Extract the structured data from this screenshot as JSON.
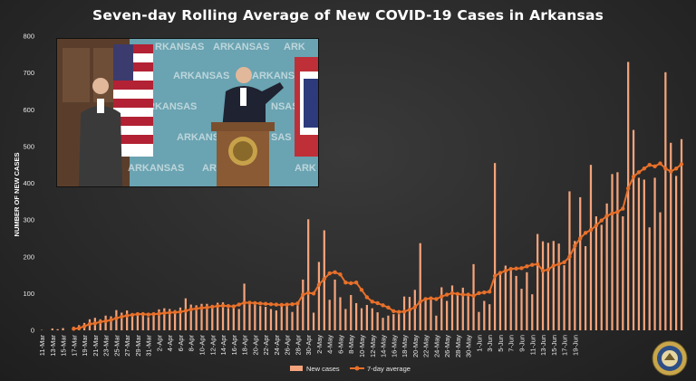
{
  "chart_data": {
    "type": "bar+line",
    "title": "Seven-day Rolling Average of New COVID-19 Cases in Arkansas",
    "ylabel": "NUMBER OF NEW CASES",
    "xlabel": "",
    "ylim": [
      0,
      800
    ],
    "yticks": [
      0,
      100,
      200,
      300,
      400,
      500,
      600,
      700,
      800
    ],
    "grid": false,
    "legend_position": "bottom-center",
    "colors": {
      "bars": "#f4a47c",
      "line": "#e8702a"
    },
    "start_date": "11-Mar",
    "x_tick_labels": [
      "11-Mar",
      "13-Mar",
      "15-Mar",
      "17-Mar",
      "19-Mar",
      "21-Mar",
      "23-Mar",
      "25-Mar",
      "27-Mar",
      "29-Mar",
      "31-Mar",
      "2-Apr",
      "4-Apr",
      "6-Apr",
      "8-Apr",
      "10-Apr",
      "12-Apr",
      "14-Apr",
      "16-Apr",
      "18-Apr",
      "20-Apr",
      "22-Apr",
      "24-Apr",
      "26-Apr",
      "28-Apr",
      "30-Apr",
      "2-May",
      "4-May",
      "6-May",
      "8-May",
      "10-May",
      "12-May",
      "14-May",
      "16-May",
      "18-May",
      "20-May",
      "22-May",
      "24-May",
      "26-May",
      "28-May",
      "30-May",
      "1-Jun",
      "3-Jun",
      "5-Jun",
      "7-Jun",
      "9-Jun",
      "11-Jun",
      "13-Jun",
      "15-Jun",
      "17-Jun",
      "19-Jun"
    ],
    "series": [
      {
        "name": "New cases",
        "kind": "bar",
        "values": [
          1,
          0,
          5,
          3,
          6,
          0,
          10,
          14,
          20,
          30,
          34,
          30,
          40,
          38,
          55,
          48,
          54,
          44,
          48,
          44,
          36,
          47,
          57,
          60,
          58,
          55,
          62,
          87,
          70,
          68,
          72,
          72,
          65,
          75,
          76,
          60,
          65,
          58,
          127,
          80,
          75,
          66,
          64,
          58,
          54,
          74,
          72,
          50,
          68,
          138,
          302,
          48,
          186,
          272,
          83,
          138,
          90,
          58,
          96,
          74,
          60,
          69,
          60,
          49,
          34,
          40,
          44,
          44,
          92,
          91,
          110,
          237,
          85,
          86,
          40,
          117,
          80,
          122,
          96,
          116,
          102,
          180,
          50,
          80,
          71,
          455,
          153,
          176,
          165,
          148,
          113,
          158,
          98,
          262,
          242,
          238,
          243,
          236,
          177,
          378,
          243,
          362,
          229,
          450,
          310,
          287,
          345,
          425,
          430,
          310,
          730,
          545,
          415,
          410,
          280,
          415,
          321,
          702,
          510,
          420,
          520
        ]
      },
      {
        "name": "7-day average",
        "kind": "line",
        "values": [
          null,
          null,
          null,
          null,
          null,
          null,
          4,
          6,
          11,
          17,
          19,
          23,
          25,
          28,
          33,
          37,
          40,
          42,
          44,
          44,
          43,
          44,
          45,
          47,
          48,
          49,
          50,
          53,
          57,
          59,
          61,
          62,
          64,
          66,
          67,
          66,
          65,
          70,
          75,
          75,
          74,
          73,
          72,
          71,
          70,
          69,
          70,
          71,
          73,
          97,
          102,
          100,
          124,
          140,
          155,
          158,
          152,
          130,
          128,
          130,
          110,
          90,
          78,
          74,
          68,
          62,
          52,
          50,
          51,
          56,
          63,
          78,
          85,
          87,
          85,
          92,
          97,
          101,
          99,
          97,
          97,
          94,
          101,
          103,
          105,
          148,
          156,
          162,
          167,
          168,
          169,
          174,
          178,
          180,
          162,
          165,
          176,
          180,
          185,
          200,
          230,
          250,
          265,
          273,
          285,
          299,
          311,
          318,
          322,
          331,
          386,
          418,
          430,
          440,
          450,
          446,
          454,
          440,
          432,
          440,
          452
        ]
      }
    ]
  },
  "branding": {
    "seal_text": "GREAT SEAL OF THE STATE OF ARKANSAS"
  }
}
